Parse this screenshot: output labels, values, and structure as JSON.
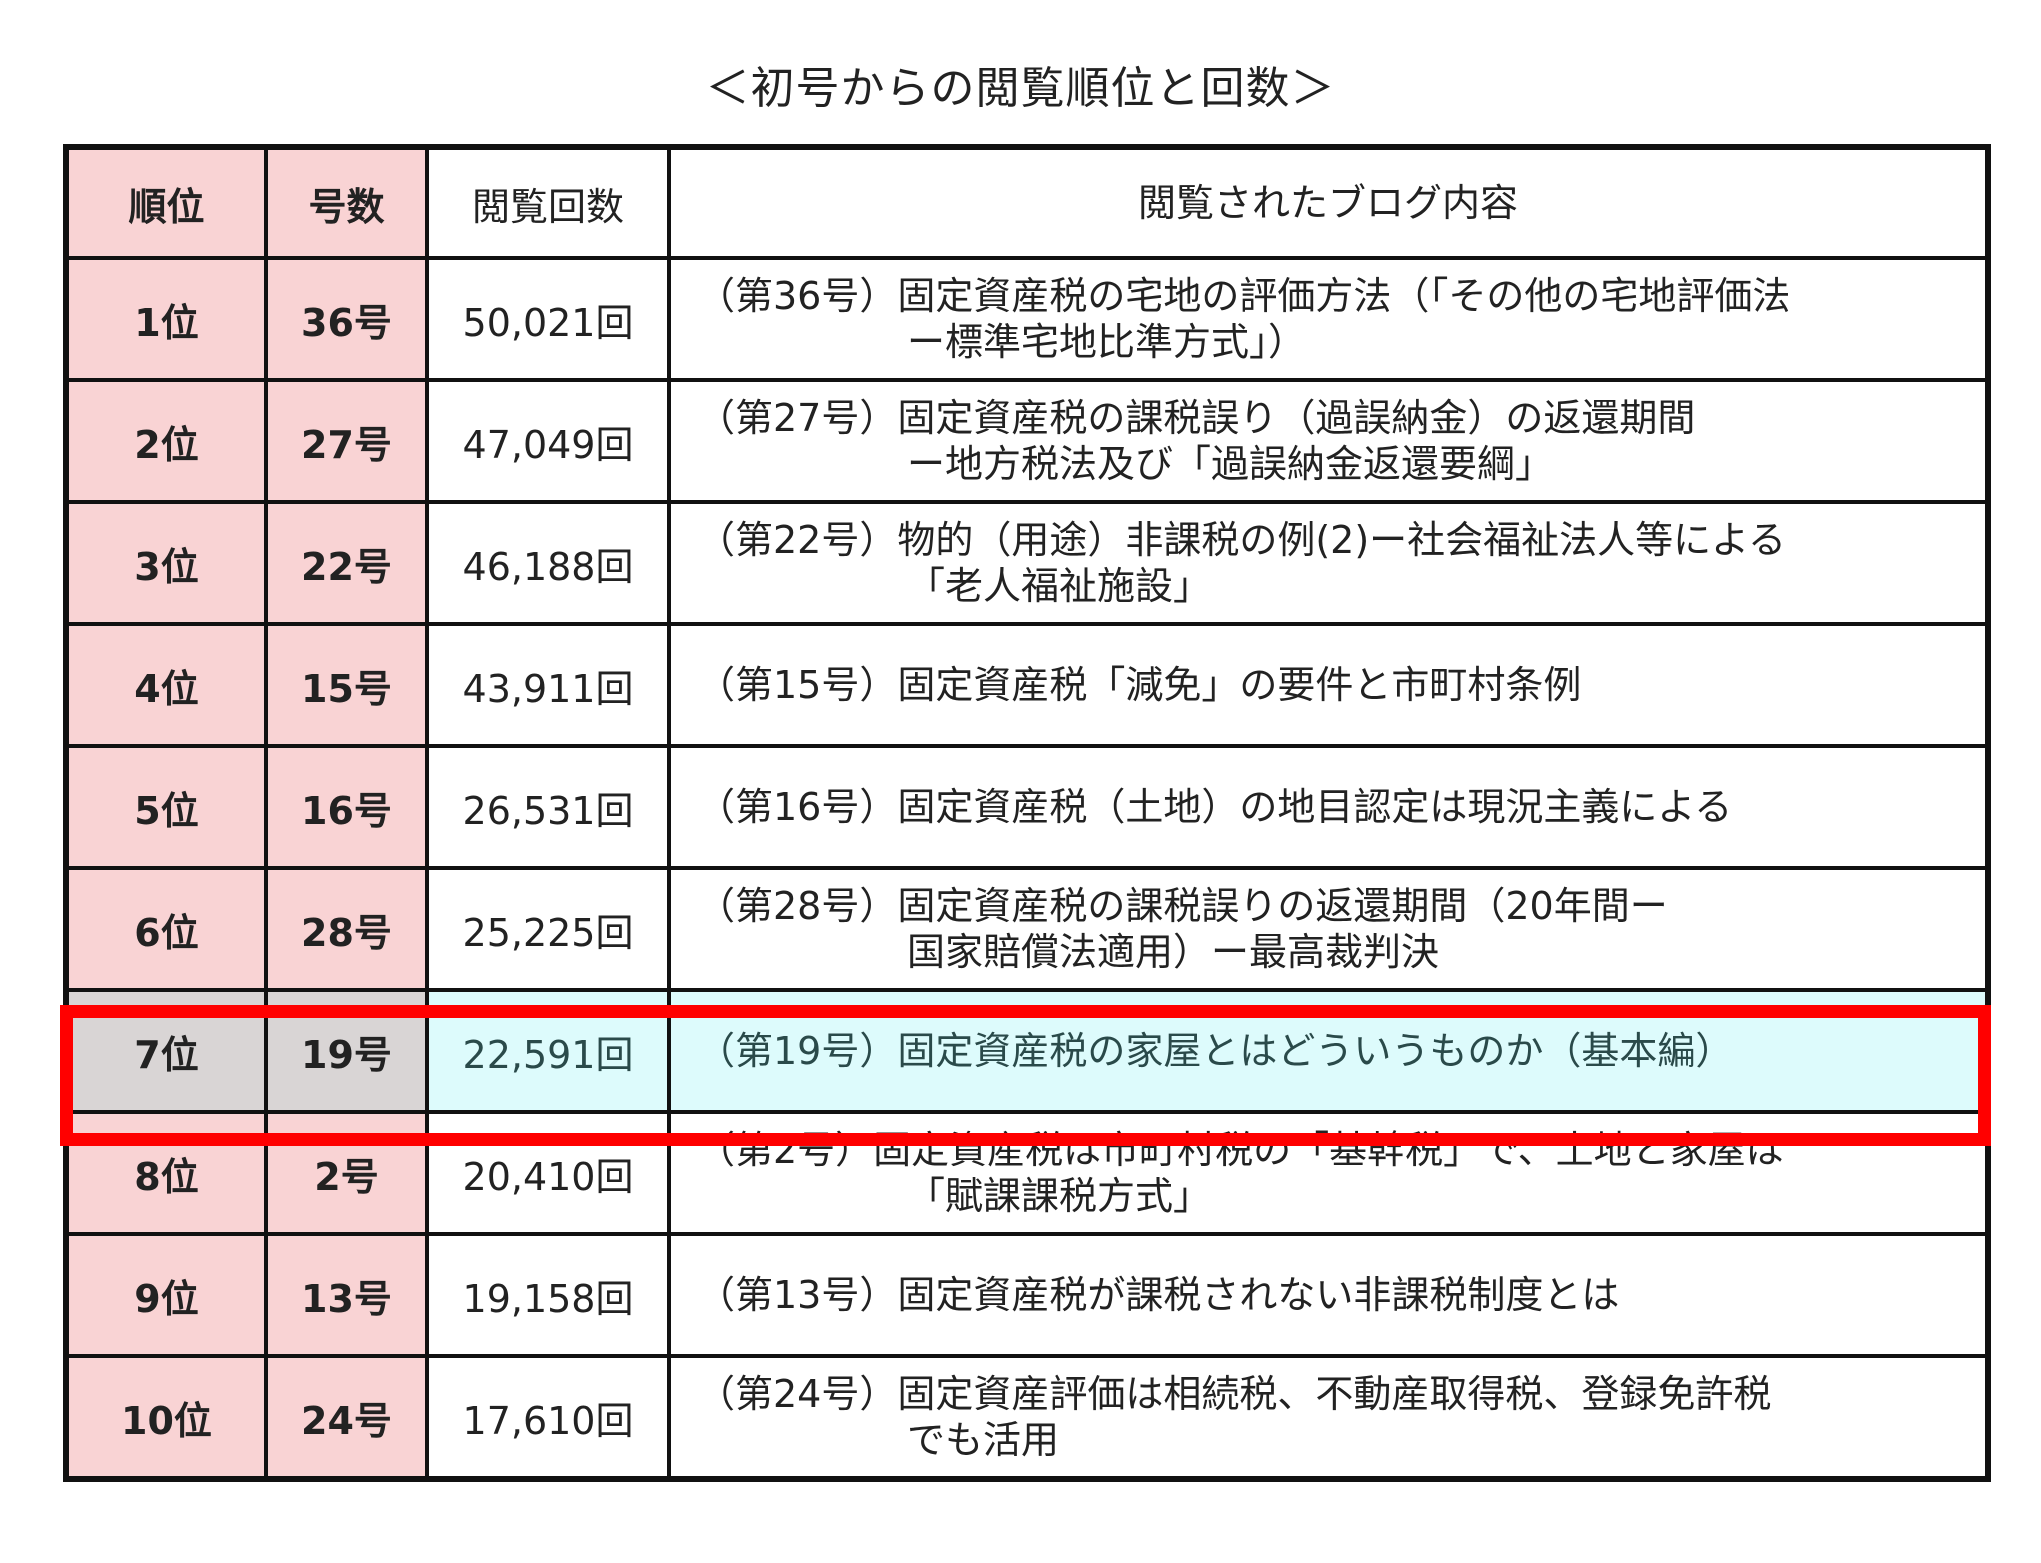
{
  "title": "＜初号からの閲覧順位と回数＞",
  "headers": {
    "rank": "順位",
    "issue": "号数",
    "views": "閲覧回数",
    "content": "閲覧されたブログ内容"
  },
  "highlight_color": "#ff0000",
  "rows": [
    {
      "rank": "1位",
      "issue": "36号",
      "views": "50,021回",
      "line1": "（第36号）固定資産税の宅地の評価方法（「その他の宅地評価法",
      "line2": "ー標準宅地比準方式」）"
    },
    {
      "rank": "2位",
      "issue": "27号",
      "views": "47,049回",
      "line1": "（第27号）固定資産税の課税誤り（過誤納金）の返還期間",
      "line2": "ー地方税法及び「過誤納金返還要綱」"
    },
    {
      "rank": "3位",
      "issue": "22号",
      "views": "46,188回",
      "line1": "（第22号）物的（用途）非課税の例(2)ー社会福祉法人等による",
      "line2": "「老人福祉施設」"
    },
    {
      "rank": "4位",
      "issue": "15号",
      "views": "43,911回",
      "line1": "（第15号）固定資産税「減免」の要件と市町村条例",
      "line2": ""
    },
    {
      "rank": "5位",
      "issue": "16号",
      "views": "26,531回",
      "line1": "（第16号）固定資産税（土地）の地目認定は現況主義による",
      "line2": ""
    },
    {
      "rank": "6位",
      "issue": "28号",
      "views": "25,225回",
      "line1": "（第28号）固定資産税の課税誤りの返還期間（20年間ー",
      "line2": "国家賠償法適用）ー最高裁判決"
    },
    {
      "rank": "7位",
      "issue": "19号",
      "views": "22,591回",
      "line1": "（第19号）固定資産税の家屋とはどういうものか（基本編）",
      "line2": "",
      "highlighted": true
    },
    {
      "rank": "8位",
      "issue": "2号",
      "views": "20,410回",
      "line1": "（第2号）固定資産税は市町村税の「基幹税」で、土地と家屋は",
      "line2": "「賦課課税方式」"
    },
    {
      "rank": "9位",
      "issue": "13号",
      "views": "19,158回",
      "line1": "（第13号）固定資産税が課税されない非課税制度とは",
      "line2": ""
    },
    {
      "rank": "10位",
      "issue": "24号",
      "views": "17,610回",
      "line1": "（第24号）固定資産評価は相続税、不動産取得税、登録免許税",
      "line2": "でも活用"
    }
  ]
}
